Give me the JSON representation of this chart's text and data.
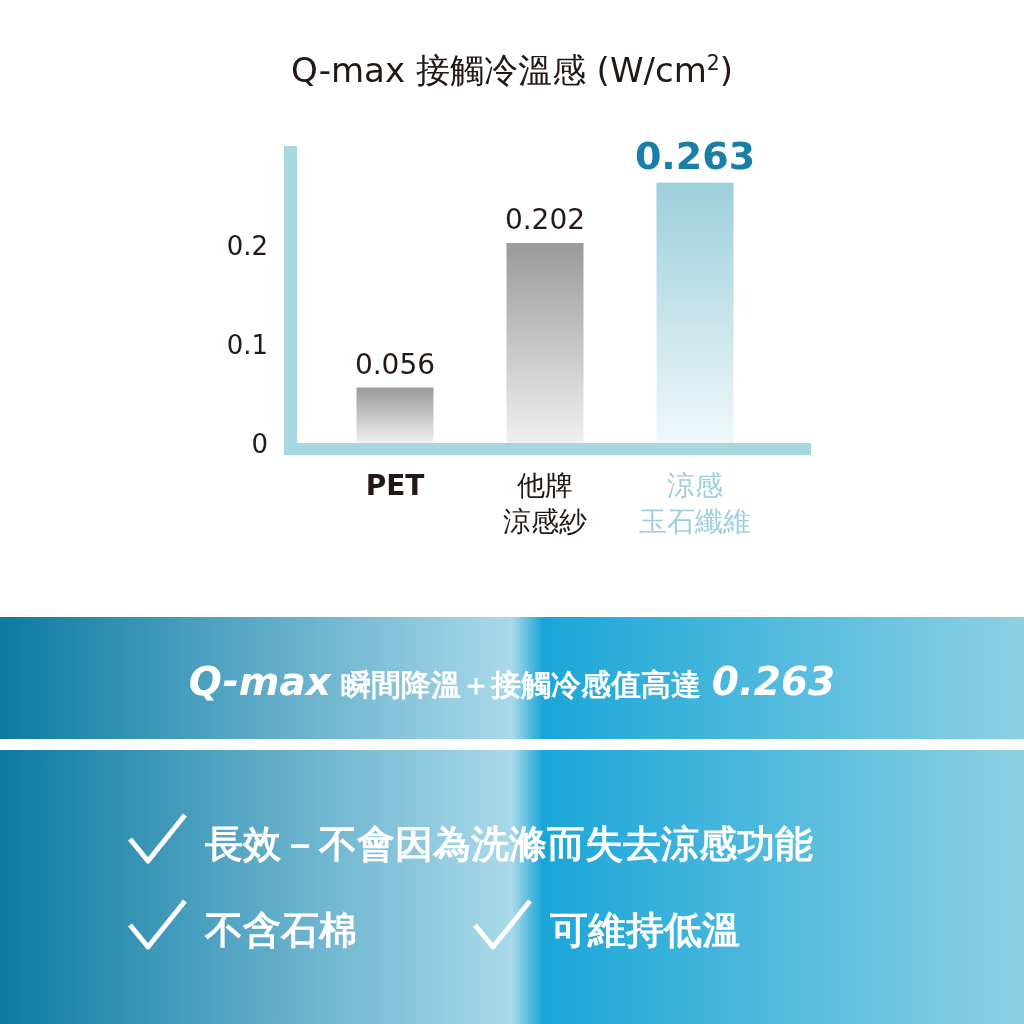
{
  "chart_data": {
    "type": "bar",
    "title": "Q-max 接觸冷溫感 (W/cm$^{2}$)",
    "categories": [
      "PET",
      "他牌涼感紗",
      "涼感玉石纖維"
    ],
    "values": [
      0.056,
      0.202,
      0.263
    ],
    "colors": [
      "#9a9a9a",
      "#9a9a9a",
      "#9ccfdb"
    ],
    "ylim": [
      0,
      0.3
    ],
    "yticks": [
      0,
      0.1,
      0.2
    ],
    "data_labels": true,
    "annotations": [
      "*Q-max* 瞬間降溫＋接觸冷感值高達 *0.263*",
      "長效－不會因為洗滌而失去涼感功能",
      "不含石棉",
      "可維持低溫"
    ]
  }
}
